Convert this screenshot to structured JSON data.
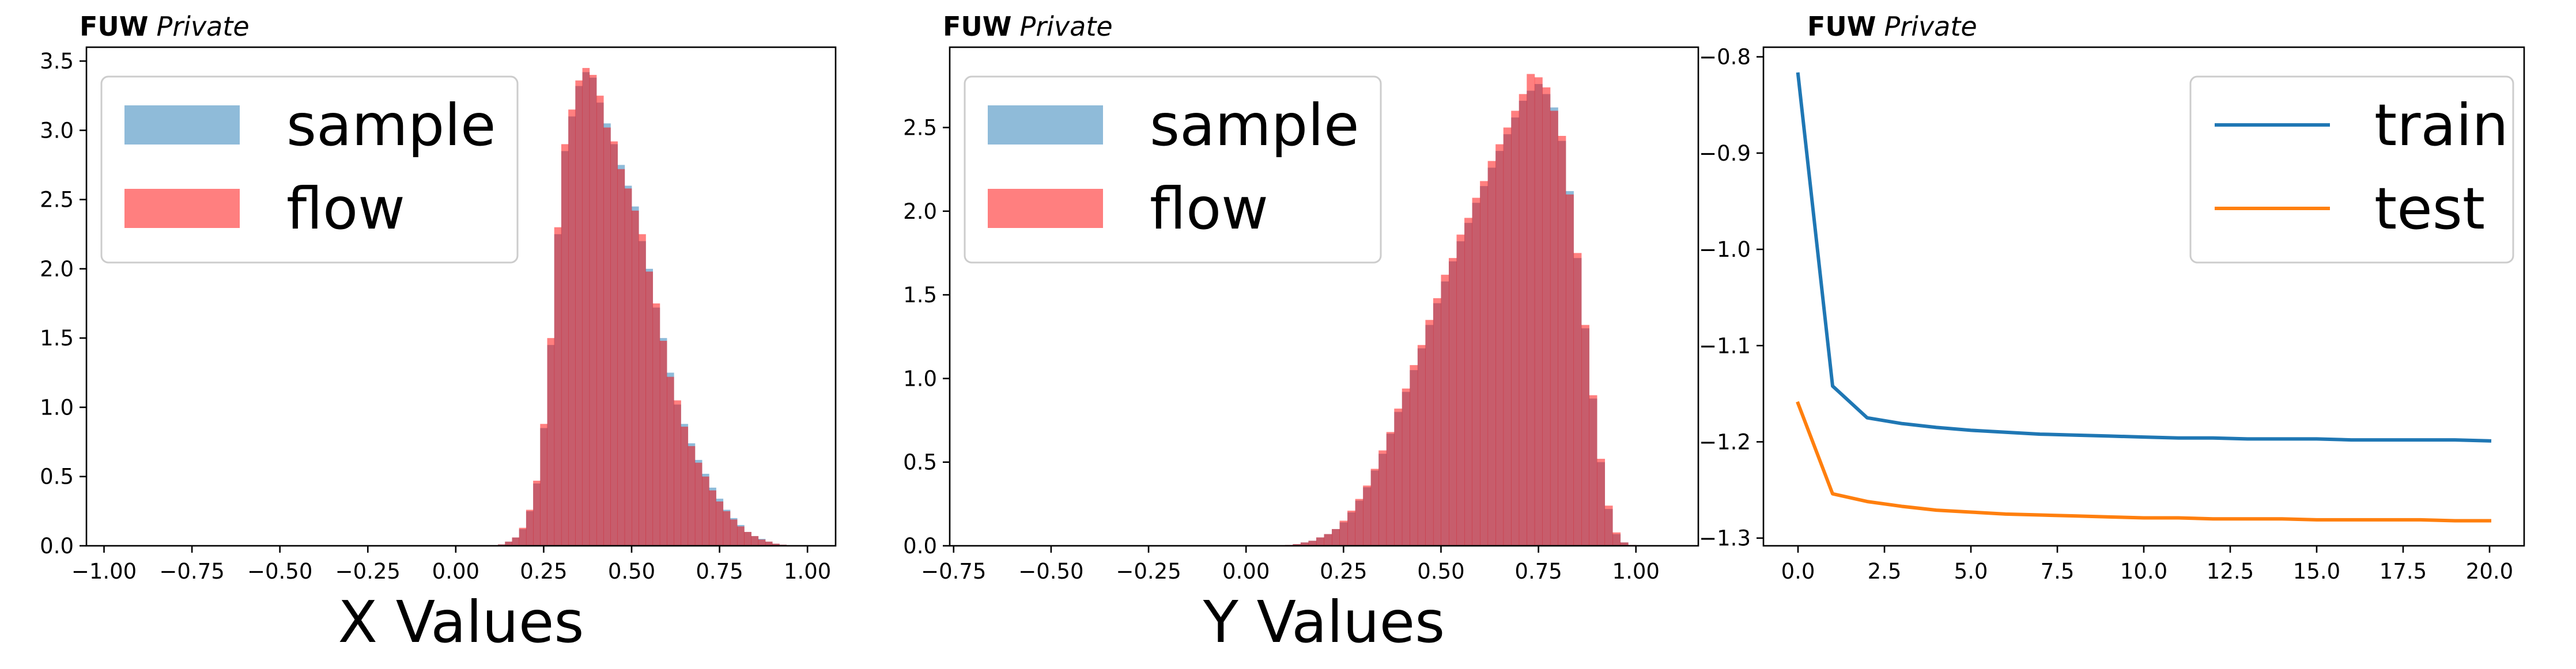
{
  "figure": {
    "tag_bold": "FUW",
    "tag_italic": "Private"
  },
  "chart_data": [
    {
      "type": "bar",
      "subtype": "histogram",
      "title": "",
      "xlabel": "X Values",
      "ylabel": "",
      "xlim": [
        -1.05,
        1.08
      ],
      "ylim": [
        0,
        3.6
      ],
      "xticks": [
        -1.0,
        -0.75,
        -0.5,
        -0.25,
        0.0,
        0.25,
        0.5,
        0.75,
        1.0
      ],
      "xtick_labels": [
        "−1.00",
        "−0.75",
        "−0.50",
        "−0.25",
        "0.00",
        "0.25",
        "0.50",
        "0.75",
        "1.00"
      ],
      "yticks": [
        0.0,
        0.5,
        1.0,
        1.5,
        2.0,
        2.5,
        3.0,
        3.5
      ],
      "ytick_labels": [
        "0.0",
        "0.5",
        "1.0",
        "1.5",
        "2.0",
        "2.5",
        "3.0",
        "3.5"
      ],
      "grid": false,
      "legend": "top-left",
      "bin_width": 0.02,
      "bin_start": 0.12,
      "series": [
        {
          "name": "sample",
          "color": "#1f77b4",
          "alpha": 0.5,
          "values": [
            0.01,
            0.03,
            0.06,
            0.12,
            0.25,
            0.45,
            0.85,
            1.45,
            2.25,
            2.85,
            3.1,
            3.32,
            3.42,
            3.38,
            3.2,
            3.05,
            2.9,
            2.75,
            2.6,
            2.45,
            2.2,
            2.0,
            1.72,
            1.5,
            1.25,
            1.02,
            0.88,
            0.74,
            0.62,
            0.52,
            0.42,
            0.34,
            0.26,
            0.2,
            0.15,
            0.1,
            0.07,
            0.05,
            0.03,
            0.015,
            0.008,
            0.004
          ]
        },
        {
          "name": "flow",
          "color": "#ff0000",
          "alpha": 0.5,
          "values": [
            0.01,
            0.03,
            0.06,
            0.13,
            0.26,
            0.47,
            0.88,
            1.5,
            2.3,
            2.9,
            3.15,
            3.36,
            3.45,
            3.4,
            3.25,
            3.02,
            2.92,
            2.72,
            2.58,
            2.42,
            2.25,
            1.98,
            1.75,
            1.48,
            1.22,
            1.05,
            0.86,
            0.72,
            0.6,
            0.5,
            0.4,
            0.32,
            0.25,
            0.19,
            0.14,
            0.1,
            0.07,
            0.045,
            0.03,
            0.015,
            0.008,
            0.004
          ]
        }
      ]
    },
    {
      "type": "bar",
      "subtype": "histogram",
      "title": "",
      "xlabel": "Y Values",
      "ylabel": "",
      "xlim": [
        -0.76,
        1.16
      ],
      "ylim": [
        0,
        2.98
      ],
      "xticks": [
        -0.75,
        -0.5,
        -0.25,
        0.0,
        0.25,
        0.5,
        0.75,
        1.0
      ],
      "xtick_labels": [
        "−0.75",
        "−0.50",
        "−0.25",
        "0.00",
        "0.25",
        "0.50",
        "0.75",
        "1.00"
      ],
      "yticks": [
        0.0,
        0.5,
        1.0,
        1.5,
        2.0,
        2.5
      ],
      "ytick_labels": [
        "0.0",
        "0.5",
        "1.0",
        "1.5",
        "2.0",
        "2.5"
      ],
      "grid": false,
      "legend": "top-left",
      "bin_width": 0.02,
      "bin_start": 0.1,
      "series": [
        {
          "name": "sample",
          "color": "#1f77b4",
          "alpha": 0.5,
          "values": [
            0.005,
            0.01,
            0.02,
            0.03,
            0.05,
            0.07,
            0.1,
            0.14,
            0.2,
            0.27,
            0.35,
            0.45,
            0.55,
            0.67,
            0.8,
            0.92,
            1.05,
            1.18,
            1.32,
            1.45,
            1.58,
            1.7,
            1.82,
            1.93,
            2.05,
            2.15,
            2.26,
            2.36,
            2.46,
            2.56,
            2.66,
            2.72,
            2.76,
            2.7,
            2.62,
            2.42,
            2.12,
            1.72,
            1.3,
            0.88,
            0.5,
            0.22,
            0.07,
            0.02,
            0.005
          ]
        },
        {
          "name": "flow",
          "color": "#ff0000",
          "alpha": 0.5,
          "values": [
            0.005,
            0.01,
            0.02,
            0.03,
            0.05,
            0.07,
            0.1,
            0.15,
            0.21,
            0.28,
            0.36,
            0.46,
            0.57,
            0.68,
            0.82,
            0.94,
            1.08,
            1.2,
            1.35,
            1.48,
            1.62,
            1.72,
            1.86,
            1.96,
            2.08,
            2.18,
            2.3,
            2.4,
            2.5,
            2.6,
            2.7,
            2.82,
            2.8,
            2.74,
            2.6,
            2.45,
            2.1,
            1.75,
            1.32,
            0.9,
            0.52,
            0.24,
            0.08,
            0.02,
            0.005
          ]
        }
      ]
    },
    {
      "type": "line",
      "title": "",
      "xlabel": "",
      "ylabel": "",
      "xlim": [
        -1.0,
        21.0
      ],
      "ylim": [
        -1.308,
        -0.79
      ],
      "xticks": [
        0.0,
        2.5,
        5.0,
        7.5,
        10.0,
        12.5,
        15.0,
        17.5,
        20.0
      ],
      "xtick_labels": [
        "0.0",
        "2.5",
        "5.0",
        "7.5",
        "10.0",
        "12.5",
        "15.0",
        "17.5",
        "20.0"
      ],
      "yticks": [
        -0.8,
        -0.9,
        -1.0,
        -1.1,
        -1.2,
        -1.3
      ],
      "ytick_labels": [
        "−0.8",
        "−0.9",
        "−1.0",
        "−1.1",
        "−1.2",
        "−1.3"
      ],
      "grid": false,
      "legend": "top-right",
      "x": [
        0,
        1,
        2,
        3,
        4,
        5,
        6,
        7,
        8,
        9,
        10,
        11,
        12,
        13,
        14,
        15,
        16,
        17,
        18,
        19,
        20
      ],
      "series": [
        {
          "name": "train",
          "color": "#1f77b4",
          "values": [
            -0.818,
            -1.142,
            -1.175,
            -1.181,
            -1.185,
            -1.188,
            -1.19,
            -1.192,
            -1.193,
            -1.194,
            -1.195,
            -1.196,
            -1.196,
            -1.197,
            -1.197,
            -1.197,
            -1.198,
            -1.198,
            -1.198,
            -1.198,
            -1.199
          ]
        },
        {
          "name": "test",
          "color": "#ff7f0e",
          "values": [
            -1.16,
            -1.254,
            -1.262,
            -1.267,
            -1.271,
            -1.273,
            -1.275,
            -1.276,
            -1.277,
            -1.278,
            -1.279,
            -1.279,
            -1.28,
            -1.28,
            -1.28,
            -1.281,
            -1.281,
            -1.281,
            -1.281,
            -1.282,
            -1.282
          ]
        }
      ]
    }
  ]
}
